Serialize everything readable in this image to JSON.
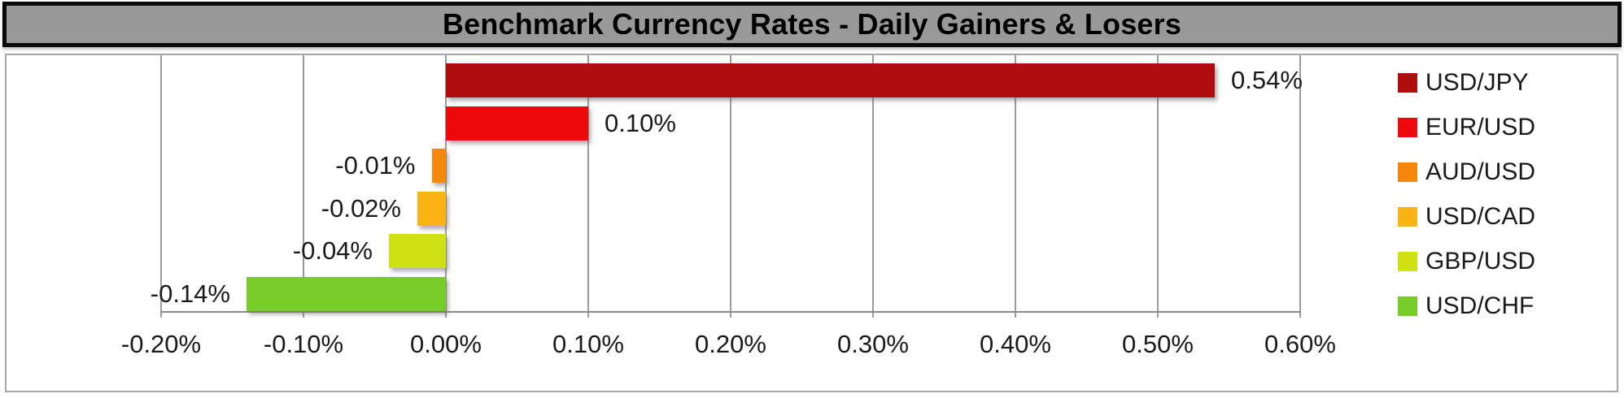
{
  "header": {
    "title": "Benchmark Currency Rates - Daily Gainers & Losers"
  },
  "chart_data": {
    "type": "bar",
    "orientation": "horizontal",
    "title": "Benchmark Currency Rates - Daily Gainers & Losers",
    "categories": [
      "USD/JPY",
      "EUR/USD",
      "AUD/USD",
      "USD/CAD",
      "GBP/USD",
      "USD/CHF"
    ],
    "values": [
      0.54,
      0.1,
      -0.01,
      -0.02,
      -0.04,
      -0.14
    ],
    "value_labels": [
      "0.54%",
      "0.10%",
      "-0.01%",
      "-0.02%",
      "-0.04%",
      "-0.14%"
    ],
    "bar_colors": [
      "#b00d0e",
      "#ee090c",
      "#f6880f",
      "#fcb316",
      "#d1e214",
      "#77cc2a"
    ],
    "x_tick_labels": [
      "-0.20%",
      "-0.10%",
      "0.00%",
      "0.10%",
      "0.20%",
      "0.30%",
      "0.40%",
      "0.50%",
      "0.60%"
    ],
    "x_tick_values": [
      -0.2,
      -0.1,
      0.0,
      0.1,
      0.2,
      0.3,
      0.4,
      0.5,
      0.6
    ],
    "xlim": [
      -0.2,
      0.6
    ],
    "grid": true,
    "legend_position": "right",
    "legend": [
      {
        "label": "USD/JPY",
        "color": "#b00d0e"
      },
      {
        "label": "EUR/USD",
        "color": "#ee090c"
      },
      {
        "label": "AUD/USD",
        "color": "#f6880f"
      },
      {
        "label": "USD/CAD",
        "color": "#fcb316"
      },
      {
        "label": "GBP/USD",
        "color": "#d1e214"
      },
      {
        "label": "USD/CHF",
        "color": "#77cc2a"
      }
    ],
    "colors": {
      "title_bar_bg": "#999999",
      "title_bar_border": "#0a0a0a",
      "title_text": "#000000",
      "body_border": "#a6a6a6",
      "gridline": "#9b9b9b",
      "axis_line": "#8a8a8a",
      "label_text": "#1a1a1a"
    }
  }
}
